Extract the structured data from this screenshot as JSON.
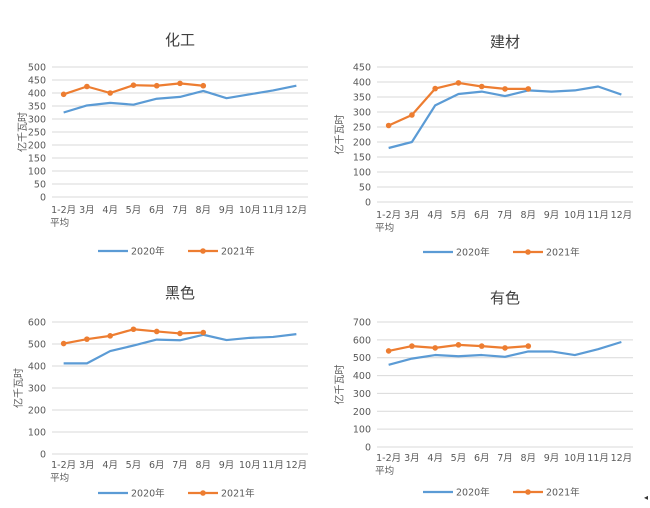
{
  "chart_data": [
    {
      "type": "line",
      "title": "化工",
      "ylabel": "亿千瓦时",
      "ylim": [
        0,
        500
      ],
      "yticks": [
        0,
        50,
        100,
        150,
        200,
        250,
        300,
        350,
        400,
        450,
        500
      ],
      "categories": [
        "1-2月平均",
        "3月",
        "4月",
        "5月",
        "6月",
        "7月",
        "8月",
        "9月",
        "10月",
        "11月",
        "12月"
      ],
      "series": [
        {
          "name": "2020年",
          "color": "#5b9bd5",
          "values": [
            325,
            352,
            362,
            355,
            378,
            385,
            408,
            380,
            395,
            410,
            428
          ]
        },
        {
          "name": "2021年",
          "color": "#ed7d31",
          "values": [
            395,
            425,
            400,
            430,
            428,
            437,
            428,
            null,
            null,
            null,
            null
          ]
        }
      ],
      "legend": "bottom"
    },
    {
      "type": "line",
      "title": "建材",
      "ylabel": "亿千瓦时",
      "ylim": [
        0,
        450
      ],
      "yticks": [
        0,
        50,
        100,
        150,
        200,
        250,
        300,
        350,
        400,
        450
      ],
      "categories": [
        "1-2月平均",
        "3月",
        "4月",
        "5月",
        "6月",
        "7月",
        "8月",
        "9月",
        "10月",
        "11月",
        "12月"
      ],
      "series": [
        {
          "name": "2020年",
          "color": "#5b9bd5",
          "values": [
            180,
            200,
            322,
            360,
            368,
            353,
            372,
            368,
            372,
            385,
            358
          ]
        },
        {
          "name": "2021年",
          "color": "#ed7d31",
          "values": [
            255,
            290,
            378,
            397,
            385,
            377,
            377,
            null,
            null,
            null,
            null
          ]
        }
      ],
      "legend": "bottom"
    },
    {
      "type": "line",
      "title": "黑色",
      "ylabel": "亿千瓦时",
      "ylim": [
        0,
        600
      ],
      "yticks": [
        0,
        100,
        200,
        300,
        400,
        500,
        600
      ],
      "categories": [
        "1-2月平均",
        "3月",
        "4月",
        "5月",
        "6月",
        "7月",
        "8月",
        "9月",
        "10月",
        "11月",
        "12月"
      ],
      "series": [
        {
          "name": "2020年",
          "color": "#5b9bd5",
          "values": [
            412,
            412,
            468,
            493,
            520,
            517,
            542,
            518,
            528,
            532,
            545
          ]
        },
        {
          "name": "2021年",
          "color": "#ed7d31",
          "values": [
            502,
            522,
            537,
            567,
            557,
            548,
            552,
            null,
            null,
            null,
            null
          ]
        }
      ],
      "legend": "bottom"
    },
    {
      "type": "line",
      "title": "有色",
      "ylabel": "亿千瓦时",
      "ylim": [
        0,
        700
      ],
      "yticks": [
        0,
        100,
        200,
        300,
        400,
        500,
        600,
        700
      ],
      "categories": [
        "1-2月平均",
        "3月",
        "4月",
        "5月",
        "6月",
        "7月",
        "8月",
        "9月",
        "10月",
        "11月",
        "12月"
      ],
      "series": [
        {
          "name": "2020年",
          "color": "#5b9bd5",
          "values": [
            460,
            495,
            515,
            508,
            515,
            505,
            535,
            535,
            515,
            548,
            588
          ]
        },
        {
          "name": "2021年",
          "color": "#ed7d31",
          "values": [
            538,
            565,
            555,
            572,
            565,
            555,
            565,
            null,
            null,
            null,
            null
          ]
        }
      ],
      "legend": "bottom"
    }
  ],
  "corner_mark": "◂"
}
